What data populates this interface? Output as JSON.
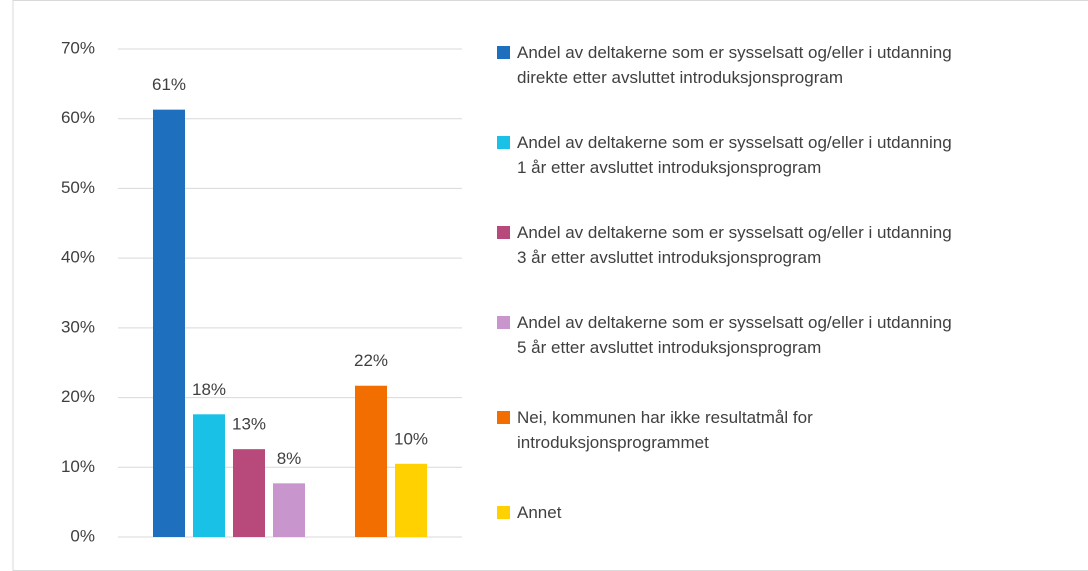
{
  "chart_data": {
    "type": "bar",
    "categories": [
      null,
      null
    ],
    "series": [
      {
        "name": "Andel av deltakerne som er sysselsatt og/eller i utdanning\ndirekte etter avsluttet introduksjonsprogram",
        "color": "#1f6fbf",
        "values": [
          61.3,
          null
        ],
        "value_labels": [
          "61%",
          null
        ]
      },
      {
        "name": "Andel av deltakerne som er sysselsatt og/eller i utdanning\n1 år etter avsluttet introduksjonsprogram",
        "color": "#1ac1e6",
        "values": [
          17.6,
          null
        ],
        "value_labels": [
          "18%",
          null
        ]
      },
      {
        "name": "Andel av deltakerne som er sysselsatt og/eller i utdanning\n3 år etter avsluttet introduksjonsprogram",
        "color": "#b84a7b",
        "values": [
          12.6,
          null
        ],
        "value_labels": [
          "13%",
          null
        ]
      },
      {
        "name": "Andel av deltakerne som er sysselsatt og/eller i utdanning\n5 år etter avsluttet introduksjonsprogram",
        "color": "#c896cc",
        "values": [
          7.7,
          null
        ],
        "value_labels": [
          "8%",
          null
        ]
      },
      {
        "name": "Nei, kommunen har ikke resultatmål for\nintroduksjonsprogrammet",
        "color": "#f36e00",
        "values": [
          null,
          21.7
        ],
        "value_labels": [
          null,
          "22%"
        ]
      },
      {
        "name": "Annet",
        "color": "#ffd100",
        "values": [
          null,
          10.5
        ],
        "value_labels": [
          null,
          "10%"
        ]
      }
    ],
    "ylim": [
      0,
      70
    ],
    "yticks": [
      {
        "value": 0,
        "label": "0%"
      },
      {
        "value": 10,
        "label": "10%"
      },
      {
        "value": 20,
        "label": "20%"
      },
      {
        "value": 30,
        "label": "30%"
      },
      {
        "value": 40,
        "label": "40%"
      },
      {
        "value": 50,
        "label": "50%"
      },
      {
        "value": 60,
        "label": "60%"
      },
      {
        "value": 70,
        "label": "70%"
      }
    ],
    "grid": true,
    "legend": "right"
  }
}
